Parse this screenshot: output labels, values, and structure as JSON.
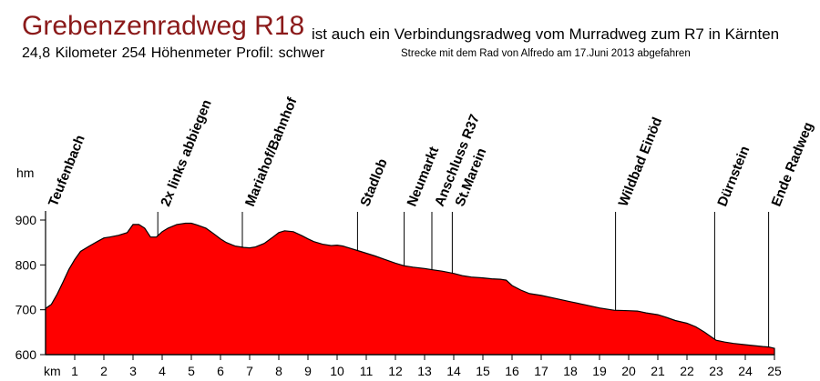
{
  "header": {
    "title": "Grebenzenradweg R18",
    "subtitle": "ist auch ein Verbindungsradweg vom Murradweg zum R7 in Kärnten",
    "stats": "24,8 Kilometer  254 Höhenmeter  Profil: schwer",
    "credit": "Strecke mit dem Rad von Alfredo am 17.Juni 2013 abgefahren"
  },
  "colors": {
    "title": "#8b1a1a",
    "area_fill": "#ff0000",
    "area_stroke": "#000000"
  },
  "chart_data": {
    "type": "area",
    "ylabel": "hm",
    "xlabel": "km",
    "xlim": [
      0,
      25
    ],
    "ylim": [
      600,
      900
    ],
    "x_ticks": [
      1,
      2,
      3,
      4,
      5,
      6,
      7,
      8,
      9,
      10,
      11,
      12,
      13,
      14,
      15,
      16,
      17,
      18,
      19,
      20,
      21,
      22,
      23,
      24,
      25
    ],
    "y_ticks": [
      600,
      700,
      800,
      900
    ],
    "x": [
      0,
      0.2,
      0.4,
      0.6,
      0.8,
      1.0,
      1.2,
      1.5,
      1.8,
      2.0,
      2.2,
      2.5,
      2.8,
      3.0,
      3.2,
      3.4,
      3.6,
      3.8,
      4.0,
      4.2,
      4.5,
      4.8,
      5.0,
      5.2,
      5.5,
      5.8,
      6.0,
      6.2,
      6.5,
      6.8,
      7.0,
      7.2,
      7.5,
      7.8,
      8.0,
      8.2,
      8.5,
      8.8,
      9.0,
      9.2,
      9.5,
      9.8,
      10.0,
      10.2,
      10.5,
      10.8,
      11.0,
      11.3,
      11.6,
      12.0,
      12.3,
      12.6,
      13.0,
      13.3,
      13.6,
      14.0,
      14.3,
      14.6,
      15.0,
      15.3,
      15.6,
      15.8,
      16.0,
      16.3,
      16.6,
      17.0,
      17.5,
      18.0,
      18.5,
      19.0,
      19.5,
      20.0,
      20.3,
      20.6,
      21.0,
      21.3,
      21.6,
      22.0,
      22.3,
      22.6,
      23.0,
      23.3,
      23.6,
      24.0,
      24.3,
      24.6,
      24.8,
      25.0
    ],
    "y": [
      703,
      712,
      735,
      762,
      790,
      812,
      830,
      842,
      853,
      860,
      862,
      866,
      872,
      890,
      890,
      882,
      862,
      862,
      874,
      882,
      890,
      893,
      893,
      889,
      882,
      868,
      858,
      850,
      842,
      839,
      838,
      840,
      848,
      862,
      872,
      876,
      874,
      865,
      858,
      852,
      846,
      843,
      844,
      842,
      836,
      830,
      826,
      820,
      813,
      804,
      798,
      795,
      792,
      789,
      786,
      781,
      776,
      773,
      771,
      769,
      768,
      766,
      754,
      744,
      736,
      732,
      725,
      718,
      711,
      704,
      699,
      698,
      697,
      693,
      689,
      683,
      676,
      670,
      662,
      650,
      632,
      628,
      625,
      622,
      620,
      618,
      617,
      614
    ],
    "waypoints": [
      {
        "label": "Teufenbach",
        "km": 0
      },
      {
        "label": "2x links abbiegen",
        "km": 3.85
      },
      {
        "label": "Mariahof/Bahnhof",
        "km": 6.75
      },
      {
        "label": "Stadlob",
        "km": 10.7
      },
      {
        "label": "Neumarkt",
        "km": 12.3
      },
      {
        "label": "Anschluss R37",
        "km": 13.25
      },
      {
        "label": "St.Marein",
        "km": 13.95
      },
      {
        "label": "Wildbad Einöd",
        "km": 19.55
      },
      {
        "label": "Dürnstein",
        "km": 22.95
      },
      {
        "label": "Ende Radweg",
        "km": 24.8
      }
    ]
  }
}
